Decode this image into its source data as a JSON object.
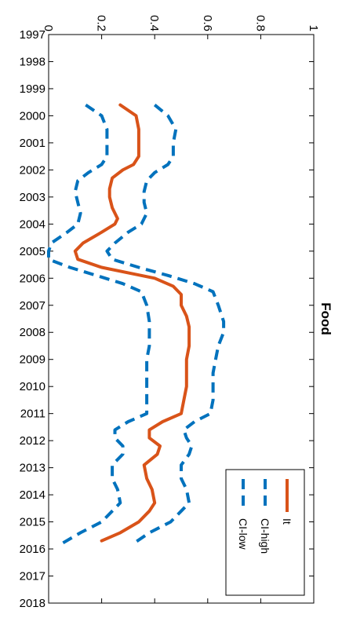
{
  "chart_data": {
    "type": "line",
    "orientation": "rotated-90-cw",
    "title": "Food",
    "xlabel": "",
    "ylabel": "",
    "xlim": [
      1997,
      2018
    ],
    "ylim": [
      0,
      1
    ],
    "x_ticks": [
      "1997",
      "1998",
      "1999",
      "2000",
      "2001",
      "2002",
      "2003",
      "2004",
      "2005",
      "2006",
      "2007",
      "2008",
      "2009",
      "2010",
      "2011",
      "2012",
      "2013",
      "2014",
      "2015",
      "2016",
      "2017",
      "2018"
    ],
    "y_ticks": [
      "0",
      "0.2",
      "0.4",
      "0.6",
      "0.8",
      "1"
    ],
    "legend": {
      "placement": "bottom-right",
      "entries": [
        "It",
        "CI-high",
        "CI-low"
      ]
    },
    "grid": false,
    "series": [
      {
        "name": "It",
        "color": "#D95319",
        "style": "solid",
        "points": [
          [
            1999.6,
            0.27
          ],
          [
            2000.0,
            0.33
          ],
          [
            2000.5,
            0.34
          ],
          [
            2001.0,
            0.34
          ],
          [
            2001.5,
            0.34
          ],
          [
            2001.8,
            0.32
          ],
          [
            2002.0,
            0.28
          ],
          [
            2002.3,
            0.24
          ],
          [
            2002.7,
            0.23
          ],
          [
            2003.0,
            0.23
          ],
          [
            2003.4,
            0.24
          ],
          [
            2003.8,
            0.26
          ],
          [
            2004.0,
            0.25
          ],
          [
            2004.3,
            0.2
          ],
          [
            2004.7,
            0.13
          ],
          [
            2005.0,
            0.1
          ],
          [
            2005.3,
            0.11
          ],
          [
            2005.6,
            0.2
          ],
          [
            2005.8,
            0.3
          ],
          [
            2006.0,
            0.4
          ],
          [
            2006.3,
            0.47
          ],
          [
            2006.6,
            0.5
          ],
          [
            2007.0,
            0.5
          ],
          [
            2007.4,
            0.52
          ],
          [
            2007.8,
            0.53
          ],
          [
            2008.5,
            0.53
          ],
          [
            2009.0,
            0.52
          ],
          [
            2009.5,
            0.52
          ],
          [
            2010.0,
            0.52
          ],
          [
            2010.5,
            0.51
          ],
          [
            2011.0,
            0.5
          ],
          [
            2011.3,
            0.43
          ],
          [
            2011.6,
            0.38
          ],
          [
            2011.9,
            0.38
          ],
          [
            2012.2,
            0.42
          ],
          [
            2012.5,
            0.41
          ],
          [
            2012.9,
            0.36
          ],
          [
            2013.4,
            0.37
          ],
          [
            2013.8,
            0.39
          ],
          [
            2014.3,
            0.4
          ],
          [
            2014.6,
            0.38
          ],
          [
            2015.0,
            0.34
          ],
          [
            2015.4,
            0.27
          ],
          [
            2015.7,
            0.2
          ]
        ]
      },
      {
        "name": "CI-high",
        "color": "#0072BD",
        "style": "dashed",
        "points": [
          [
            1999.6,
            0.4
          ],
          [
            2000.0,
            0.45
          ],
          [
            2000.5,
            0.48
          ],
          [
            2001.0,
            0.47
          ],
          [
            2001.5,
            0.47
          ],
          [
            2001.8,
            0.45
          ],
          [
            2002.1,
            0.4
          ],
          [
            2002.4,
            0.37
          ],
          [
            2002.8,
            0.36
          ],
          [
            2003.2,
            0.36
          ],
          [
            2003.6,
            0.37
          ],
          [
            2004.0,
            0.35
          ],
          [
            2004.3,
            0.3
          ],
          [
            2004.7,
            0.25
          ],
          [
            2005.0,
            0.22
          ],
          [
            2005.3,
            0.24
          ],
          [
            2005.6,
            0.34
          ],
          [
            2005.9,
            0.45
          ],
          [
            2006.2,
            0.55
          ],
          [
            2006.5,
            0.62
          ],
          [
            2007.0,
            0.64
          ],
          [
            2007.6,
            0.66
          ],
          [
            2008.0,
            0.66
          ],
          [
            2008.5,
            0.64
          ],
          [
            2009.0,
            0.63
          ],
          [
            2009.5,
            0.62
          ],
          [
            2010.0,
            0.62
          ],
          [
            2010.5,
            0.62
          ],
          [
            2011.0,
            0.61
          ],
          [
            2011.3,
            0.55
          ],
          [
            2011.6,
            0.51
          ],
          [
            2011.9,
            0.52
          ],
          [
            2012.2,
            0.54
          ],
          [
            2012.5,
            0.53
          ],
          [
            2012.9,
            0.5
          ],
          [
            2013.4,
            0.5
          ],
          [
            2013.8,
            0.52
          ],
          [
            2014.3,
            0.53
          ],
          [
            2014.6,
            0.5
          ],
          [
            2015.0,
            0.46
          ],
          [
            2015.4,
            0.38
          ],
          [
            2015.8,
            0.32
          ]
        ]
      },
      {
        "name": "CI-low",
        "color": "#0072BD",
        "style": "dashed",
        "points": [
          [
            1999.6,
            0.14
          ],
          [
            2000.0,
            0.2
          ],
          [
            2000.5,
            0.22
          ],
          [
            2001.0,
            0.22
          ],
          [
            2001.5,
            0.22
          ],
          [
            2001.8,
            0.2
          ],
          [
            2002.1,
            0.15
          ],
          [
            2002.4,
            0.11
          ],
          [
            2002.8,
            0.1
          ],
          [
            2003.2,
            0.11
          ],
          [
            2003.6,
            0.12
          ],
          [
            2004.0,
            0.11
          ],
          [
            2004.3,
            0.07
          ],
          [
            2004.7,
            0.01
          ],
          [
            2005.0,
            0.0
          ],
          [
            2005.3,
            0.0
          ],
          [
            2005.6,
            0.08
          ],
          [
            2005.9,
            0.18
          ],
          [
            2006.2,
            0.28
          ],
          [
            2006.5,
            0.35
          ],
          [
            2007.0,
            0.37
          ],
          [
            2007.6,
            0.38
          ],
          [
            2008.0,
            0.38
          ],
          [
            2008.5,
            0.38
          ],
          [
            2009.0,
            0.37
          ],
          [
            2009.5,
            0.37
          ],
          [
            2010.0,
            0.37
          ],
          [
            2010.5,
            0.37
          ],
          [
            2011.0,
            0.37
          ],
          [
            2011.3,
            0.3
          ],
          [
            2011.6,
            0.25
          ],
          [
            2011.9,
            0.25
          ],
          [
            2012.2,
            0.28
          ],
          [
            2012.5,
            0.28
          ],
          [
            2012.9,
            0.24
          ],
          [
            2013.4,
            0.24
          ],
          [
            2013.8,
            0.26
          ],
          [
            2014.3,
            0.27
          ],
          [
            2014.6,
            0.24
          ],
          [
            2015.0,
            0.2
          ],
          [
            2015.4,
            0.12
          ],
          [
            2015.8,
            0.05
          ]
        ]
      }
    ]
  }
}
